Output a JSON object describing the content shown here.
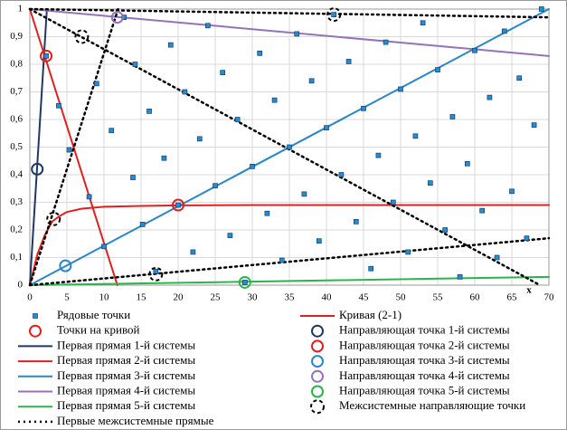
{
  "chart_data": {
    "type": "scatter",
    "axis_label_x": "x",
    "grid": true,
    "xlim": [
      0,
      70
    ],
    "xticks": [
      0,
      5,
      10,
      15,
      20,
      25,
      30,
      35,
      40,
      45,
      50,
      55,
      60,
      65,
      70
    ],
    "ylim": [
      0,
      1
    ],
    "yticks": [
      0,
      {
        "value": 0.1,
        "label": "0,1"
      },
      {
        "value": 0.2,
        "label": "0,2"
      },
      {
        "value": 0.3,
        "label": "0,3"
      },
      {
        "value": 0.4,
        "label": "0,4"
      },
      {
        "value": 0.5,
        "label": "0,5"
      },
      {
        "value": 0.6,
        "label": "0,6"
      },
      {
        "value": 0.7,
        "label": "0,7"
      },
      {
        "value": 0.8,
        "label": "0,8"
      },
      {
        "value": 0.9,
        "label": "0,9"
      },
      1
    ],
    "series": [
      {
        "name": "Рядовые точки",
        "color": "#1e8fd6",
        "mark": "square",
        "x": [
          2.2,
          3.9,
          5.3,
          8,
          9,
          10,
          11,
          12.7,
          13.9,
          14.2,
          15.2,
          16.1,
          17,
          18.1,
          19,
          20,
          20.9,
          22,
          22.9,
          24,
          25,
          26,
          27,
          28,
          29,
          30,
          31,
          32,
          33,
          34,
          35,
          36,
          37,
          38,
          39,
          40,
          41,
          42,
          43,
          44,
          45,
          46,
          47,
          48,
          49,
          50,
          51,
          52,
          53,
          54,
          55,
          56,
          57,
          58,
          59,
          60,
          61,
          62,
          63,
          64,
          65,
          66,
          67,
          68,
          69
        ],
        "values": [
          0.83,
          0.65,
          0.49,
          0.32,
          0.73,
          0.14,
          0.56,
          0.97,
          0.39,
          0.8,
          0.22,
          0.63,
          0.05,
          0.46,
          0.87,
          0.29,
          0.7,
          0.12,
          0.53,
          0.94,
          0.36,
          0.77,
          0.18,
          0.6,
          0.01,
          0.43,
          0.84,
          0.26,
          0.67,
          0.09,
          0.5,
          0.91,
          0.33,
          0.74,
          0.16,
          0.57,
          0.98,
          0.4,
          0.81,
          0.23,
          0.64,
          0.06,
          0.47,
          0.88,
          0.3,
          0.71,
          0.12,
          0.54,
          0.95,
          0.37,
          0.78,
          0.2,
          0.61,
          0.03,
          0.44,
          0.85,
          0.27,
          0.68,
          0.1,
          0.92,
          0.34,
          0.75,
          0.17,
          0.58,
          1
        ]
      },
      {
        "name": "Кривая (2-1)",
        "color": "#e02020",
        "mark": "line",
        "x": [
          0,
          1,
          2,
          3,
          4,
          5,
          7,
          10,
          15,
          20,
          30,
          40,
          50,
          60,
          70
        ],
        "values": [
          0,
          0.11,
          0.18,
          0.23,
          0.25,
          0.265,
          0.277,
          0.284,
          0.287,
          0.289,
          0.29,
          0.29,
          0.29,
          0.29,
          0.29
        ]
      },
      {
        "name": "Точки на кривой",
        "color": "#e02020",
        "mark": "circle",
        "x": [
          20
        ],
        "values": [
          0.29
        ]
      },
      {
        "name": "Направляющая точка 1-й системы",
        "color": "#1f3864",
        "mark": "circle",
        "x": [
          1
        ],
        "values": [
          0.42
        ]
      },
      {
        "name": "Первая прямая 1-й системы",
        "color": "#1f3864",
        "mark": "line",
        "x": [
          0,
          2.3
        ],
        "values": [
          0,
          1
        ]
      },
      {
        "name": "Направляющая точка 2-й системы",
        "color": "#e02020",
        "mark": "circle",
        "x": [
          2.2
        ],
        "values": [
          0.83
        ]
      },
      {
        "name": "Первая прямая 2-й системы",
        "color": "#e02020",
        "mark": "line",
        "x": [
          0,
          11.8
        ],
        "values": [
          1,
          0
        ]
      },
      {
        "name": "Направляющая точка 3-й системы",
        "color": "#2a86c8",
        "mark": "circle",
        "x": [
          4.8
        ],
        "values": [
          0.07
        ]
      },
      {
        "name": "Первая прямая 3-й системы",
        "color": "#2a86c8",
        "mark": "line",
        "x": [
          0,
          70
        ],
        "values": [
          0,
          1
        ]
      },
      {
        "name": "Направляющая точка 4-й системы",
        "color": "#9473b8",
        "mark": "circle",
        "x": [
          11.8
        ],
        "values": [
          0.97
        ]
      },
      {
        "name": "Первая прямая 4-й системы",
        "color": "#9473b8",
        "mark": "line",
        "x": [
          0,
          70
        ],
        "values": [
          1,
          0.83
        ]
      },
      {
        "name": "Направляющая точка 5-й системы",
        "color": "#2db34a",
        "mark": "circle",
        "x": [
          29
        ],
        "values": [
          0.01
        ]
      },
      {
        "name": "Первая прямая 5-й системы",
        "color": "#2db34a",
        "mark": "line",
        "x": [
          0,
          70
        ],
        "values": [
          0,
          0.03
        ]
      },
      {
        "name": "Межсистемные направляющие точки",
        "color": "#000000",
        "mark": "dashed-circle",
        "x": [
          7,
          3.2,
          17,
          41
        ],
        "values": [
          0.9,
          0.24,
          0.04,
          0.98
        ]
      },
      {
        "name": "Первые межсистемные прямые",
        "color": "#000000",
        "mark": "dotted",
        "x": [
          0,
          70,
          null,
          0,
          68.8,
          null,
          0,
          11.9,
          null,
          0,
          70
        ],
        "values": [
          1,
          0.97,
          null,
          1,
          0,
          null,
          0,
          1,
          null,
          0,
          0.17
        ]
      }
    ]
  }
}
